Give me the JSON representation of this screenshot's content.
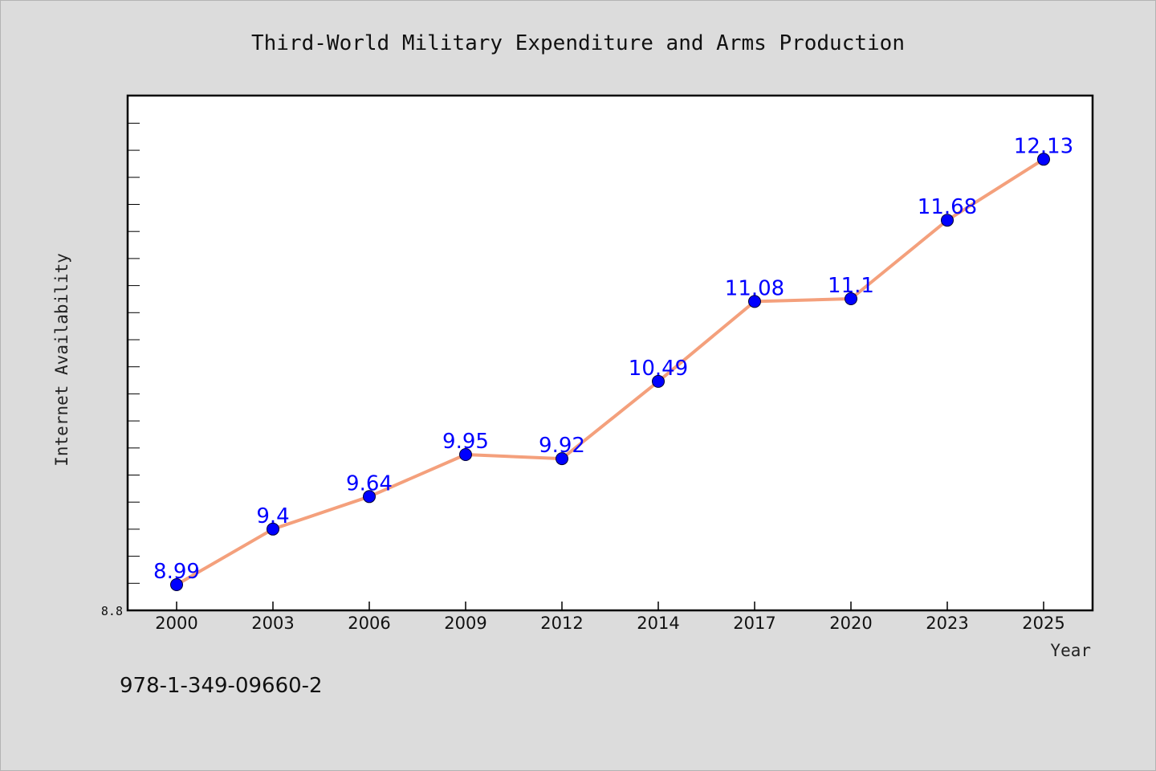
{
  "chart_data": {
    "type": "line",
    "title": "Third-World Military Expenditure and Arms Production",
    "xlabel": "Year",
    "ylabel": "Internet Availability",
    "categories": [
      "2000",
      "2003",
      "2006",
      "2009",
      "2012",
      "2014",
      "2017",
      "2020",
      "2023",
      "2025"
    ],
    "values": [
      8.99,
      9.4,
      9.64,
      9.95,
      9.92,
      10.49,
      11.08,
      11.1,
      11.68,
      12.13
    ],
    "data_labels": [
      "8.99",
      "9.4",
      "9.64",
      "9.95",
      "9.92",
      "10.49",
      "11.08",
      "11.1",
      "11.68",
      "12.13"
    ],
    "ylim": [
      8.8,
      12.6
    ],
    "y_tick_labels": [
      "8.8"
    ],
    "grid": false,
    "legend": "none",
    "colors": {
      "line": "#f4a07c",
      "marker": "#0000ff",
      "data_label": "#0000ff",
      "plot_background": "#ffffff",
      "figure_background": "#dcdcdc"
    }
  },
  "footnote": "978-1-349-09660-2"
}
